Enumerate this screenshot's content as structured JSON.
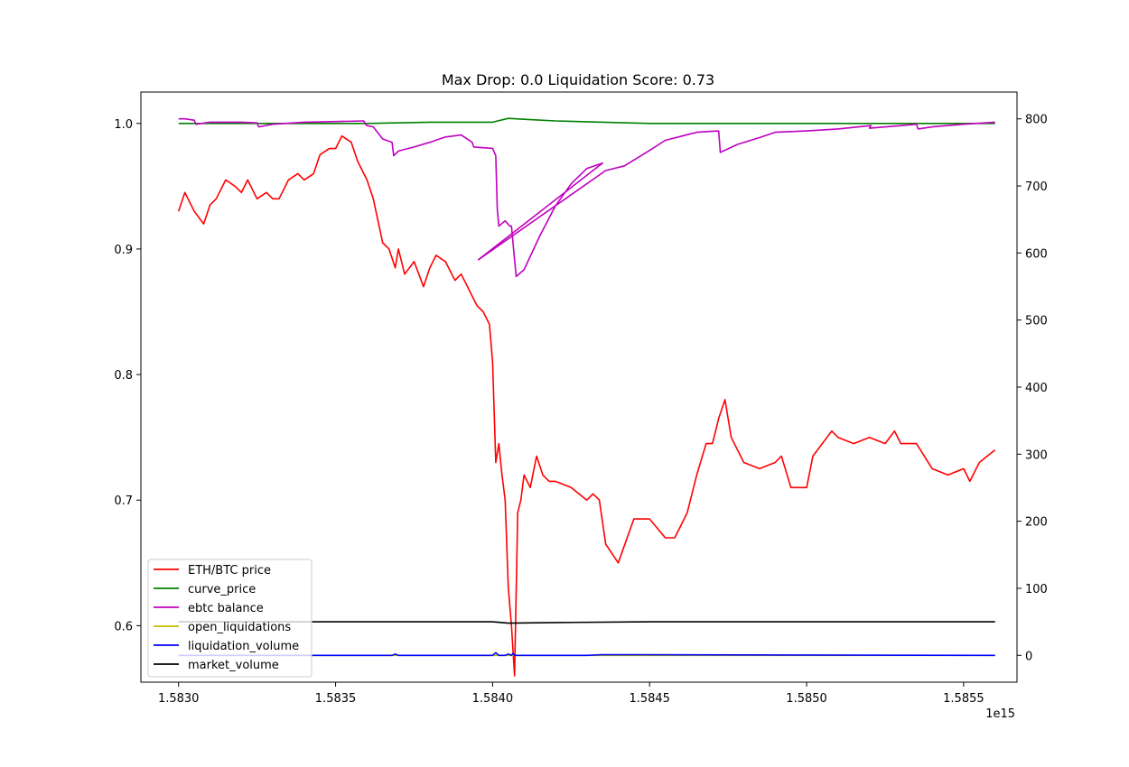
{
  "chart_data": {
    "type": "line",
    "title": "Max Drop: 0.0 Liquidation Score: 0.73",
    "xlabel": "",
    "ylabel": "",
    "x_offset_label": "1e15",
    "xlim": [
      1.58288,
      1.58567
    ],
    "ylim_left": [
      0.555,
      1.025
    ],
    "ylim_right": [
      -40,
      840
    ],
    "x_ticks": [
      {
        "value": 1.583,
        "label": "1.5830"
      },
      {
        "value": 1.5835,
        "label": "1.5835"
      },
      {
        "value": 1.584,
        "label": "1.5840"
      },
      {
        "value": 1.5845,
        "label": "1.5845"
      },
      {
        "value": 1.585,
        "label": "1.5850"
      },
      {
        "value": 1.5855,
        "label": "1.5855"
      }
    ],
    "y_ticks_left": [
      {
        "value": 0.6,
        "label": "0.6"
      },
      {
        "value": 0.7,
        "label": "0.7"
      },
      {
        "value": 0.8,
        "label": "0.8"
      },
      {
        "value": 0.9,
        "label": "0.9"
      },
      {
        "value": 1.0,
        "label": "1.0"
      }
    ],
    "y_ticks_right": [
      {
        "value": 0,
        "label": "0"
      },
      {
        "value": 100,
        "label": "100"
      },
      {
        "value": 200,
        "label": "200"
      },
      {
        "value": 300,
        "label": "300"
      },
      {
        "value": 400,
        "label": "400"
      },
      {
        "value": 500,
        "label": "500"
      },
      {
        "value": 600,
        "label": "600"
      },
      {
        "value": 700,
        "label": "700"
      },
      {
        "value": 800,
        "label": "800"
      }
    ],
    "grid": false,
    "legend": "lower-left",
    "series": [
      {
        "name": "ETH/BTC price",
        "color": "#ff0000",
        "axis": "left",
        "x": [
          1.583,
          1.58302,
          1.58305,
          1.58308,
          1.5831,
          1.58312,
          1.58315,
          1.58318,
          1.5832,
          1.58322,
          1.58325,
          1.58328,
          1.5833,
          1.58332,
          1.58335,
          1.58338,
          1.5834,
          1.58343,
          1.58345,
          1.58348,
          1.5835,
          1.58352,
          1.58355,
          1.58357,
          1.5836,
          1.58362,
          1.58365,
          1.58367,
          1.58369,
          1.5837,
          1.58372,
          1.58375,
          1.58378,
          1.5838,
          1.58382,
          1.58385,
          1.58388,
          1.5839,
          1.58392,
          1.58395,
          1.58397,
          1.58399,
          1.584,
          1.58401,
          1.58402,
          1.58403,
          1.58404,
          1.58405,
          1.58406,
          1.58407,
          1.58408,
          1.58409,
          1.5841,
          1.58412,
          1.58414,
          1.58416,
          1.58418,
          1.5842,
          1.58425,
          1.5843,
          1.58432,
          1.58434,
          1.58436,
          1.5844,
          1.58445,
          1.5845,
          1.58455,
          1.58458,
          1.5846,
          1.58462,
          1.58465,
          1.58468,
          1.5847,
          1.58472,
          1.58474,
          1.58476,
          1.5848,
          1.58485,
          1.5849,
          1.58492,
          1.58495,
          1.585,
          1.58502,
          1.58505,
          1.58508,
          1.5851,
          1.58515,
          1.5852,
          1.58525,
          1.58528,
          1.5853,
          1.58535,
          1.5854,
          1.58545,
          1.5855,
          1.58552,
          1.58555,
          1.5856
        ],
        "y": [
          0.93,
          0.945,
          0.93,
          0.92,
          0.935,
          0.94,
          0.955,
          0.95,
          0.945,
          0.955,
          0.94,
          0.945,
          0.94,
          0.94,
          0.955,
          0.96,
          0.955,
          0.96,
          0.975,
          0.98,
          0.98,
          0.99,
          0.985,
          0.97,
          0.955,
          0.94,
          0.905,
          0.9,
          0.885,
          0.9,
          0.88,
          0.89,
          0.87,
          0.885,
          0.895,
          0.89,
          0.875,
          0.88,
          0.87,
          0.855,
          0.85,
          0.84,
          0.81,
          0.73,
          0.745,
          0.72,
          0.7,
          0.63,
          0.6,
          0.56,
          0.69,
          0.7,
          0.72,
          0.71,
          0.735,
          0.72,
          0.715,
          0.715,
          0.71,
          0.7,
          0.705,
          0.7,
          0.665,
          0.65,
          0.685,
          0.685,
          0.67,
          0.67,
          0.68,
          0.69,
          0.72,
          0.745,
          0.745,
          0.765,
          0.78,
          0.75,
          0.73,
          0.725,
          0.73,
          0.735,
          0.71,
          0.71,
          0.735,
          0.745,
          0.755,
          0.75,
          0.745,
          0.75,
          0.745,
          0.755,
          0.745,
          0.745,
          0.725,
          0.72,
          0.725,
          0.715,
          0.73,
          0.74
        ]
      },
      {
        "name": "curve_price",
        "color": "#008000",
        "axis": "left",
        "x": [
          1.583,
          1.5836,
          1.5838,
          1.584,
          1.58405,
          1.58412,
          1.5842,
          1.5845,
          1.5848,
          1.5852,
          1.5856
        ],
        "y": [
          1.0,
          1.0,
          1.001,
          1.001,
          1.004,
          1.003,
          1.002,
          1.0,
          1.0,
          1.0,
          1.0
        ]
      },
      {
        "name": "ebtc balance",
        "color": "#bf00bf",
        "axis": "right",
        "x": [
          1.583,
          1.58302,
          1.58305,
          1.583055,
          1.5831,
          1.5832,
          1.58325,
          1.583255,
          1.5833,
          1.5834,
          1.5835,
          1.58359,
          1.583595,
          1.5836,
          1.58362,
          1.58365,
          1.58368,
          1.583685,
          1.5837,
          1.58375,
          1.5838,
          1.58385,
          1.5839,
          1.583935,
          1.58394,
          1.584,
          1.58401,
          1.584015,
          1.58402,
          1.58404,
          1.584055,
          1.58406,
          1.58407,
          1.584075,
          1.5841,
          1.58415,
          1.5842,
          1.58425,
          1.5843,
          1.58435,
          1.583955,
          1.58436,
          1.58442,
          1.5845,
          1.58455,
          1.58465,
          1.58472,
          1.584725,
          1.58478,
          1.58485,
          1.5849,
          1.585,
          1.5851,
          1.585205,
          1.5852,
          1.5853,
          1.58535,
          1.585355,
          1.5854,
          1.5855,
          1.5856
        ],
        "y": [
          800,
          800,
          798,
          792,
          795,
          795,
          794,
          788,
          792,
          795,
          796,
          797,
          792,
          790,
          788,
          770,
          765,
          745,
          752,
          758,
          765,
          773,
          776,
          765,
          758,
          756,
          745,
          665,
          640,
          648,
          640,
          640,
          590,
          565,
          575,
          625,
          670,
          703,
          726,
          734,
          590,
          723,
          730,
          753,
          768,
          780,
          782,
          750,
          762,
          772,
          780,
          782,
          785,
          790,
          786,
          790,
          792,
          785,
          788,
          792,
          795
        ]
      },
      {
        "name": "open_liquidations",
        "color": "#bfbf00",
        "axis": "right",
        "x": [
          1.583,
          1.5856
        ],
        "y": [
          0,
          0
        ]
      },
      {
        "name": "liquidation_volume",
        "color": "#0000ff",
        "axis": "right",
        "x": [
          1.583,
          1.58368,
          1.58369,
          1.5837,
          1.584,
          1.58401,
          1.58402,
          1.58404,
          1.58405,
          1.58406,
          1.584065,
          1.58407,
          1.5843,
          1.58435,
          1.5856
        ],
        "y": [
          0,
          0,
          2,
          0,
          0,
          4,
          0,
          0,
          2,
          0,
          3,
          0,
          0,
          1,
          0
        ]
      },
      {
        "name": "market_volume",
        "color": "#000000",
        "axis": "right",
        "x": [
          1.583,
          1.5836,
          1.584,
          1.58405,
          1.5842,
          1.5845,
          1.5856
        ],
        "y": [
          50,
          50,
          50,
          48,
          49,
          50,
          50
        ]
      }
    ]
  }
}
